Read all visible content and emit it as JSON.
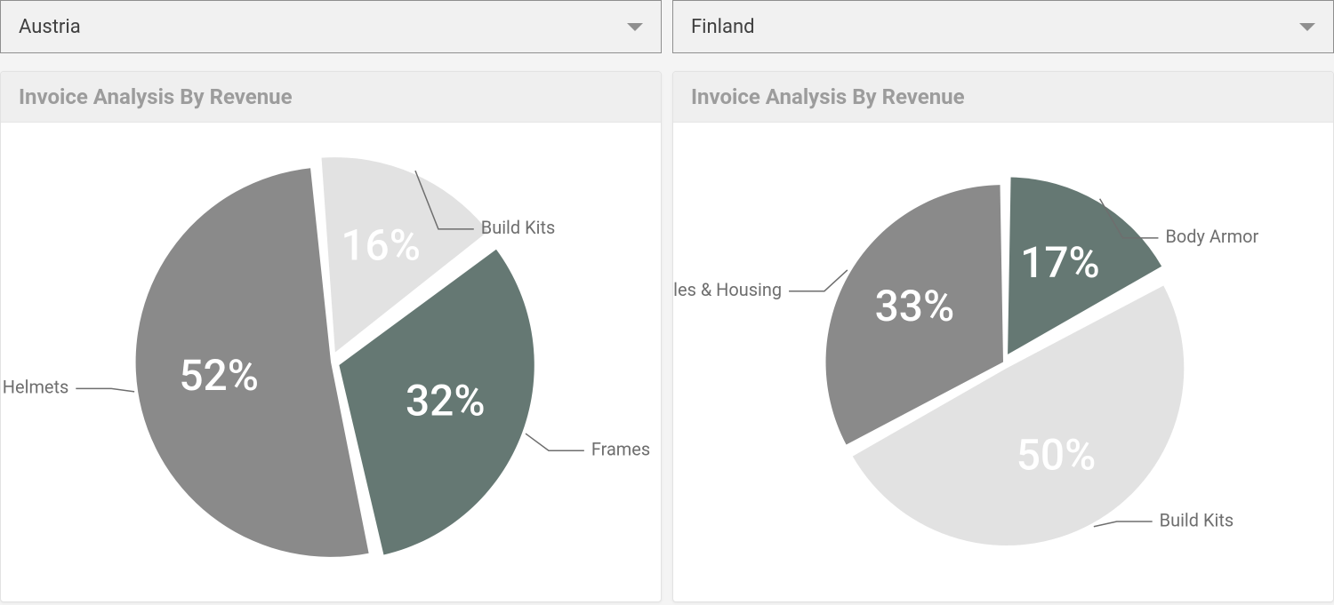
{
  "page_background": "#f4f4f4",
  "panels": [
    {
      "id": "left",
      "dropdown": {
        "selected": "Austria"
      },
      "card": {
        "title": "Invoice Analysis By Revenue",
        "chart": {
          "type": "pie",
          "background_color": "#ffffff",
          "radius": 220,
          "slice_gap_deg": 2,
          "start_angle_deg": -5,
          "pct_fontsize": 48,
          "pct_color": "#ffffff",
          "label_fontsize": 20,
          "label_color": "#6e6e6e",
          "callout_stroke": "#6e6e6e",
          "slices": [
            {
              "label": "Build Kits",
              "pct": 16,
              "color": "#e2e2e2",
              "explode": 12,
              "label_side": "right",
              "label_dy": -150
            },
            {
              "label": "Frames",
              "pct": 32,
              "color": "#657873",
              "explode": 10,
              "label_side": "right",
              "label_dy": 100
            },
            {
              "label": "Helmets",
              "pct": 52,
              "color": "#8a8a8a",
              "explode": 0,
              "label_side": "left",
              "label_dy": 30
            }
          ]
        }
      }
    },
    {
      "id": "right",
      "dropdown": {
        "selected": "Finland"
      },
      "card": {
        "title": "Invoice Analysis By Revenue",
        "chart": {
          "type": "pie",
          "background_color": "#ffffff",
          "radius": 200,
          "slice_gap_deg": 2,
          "start_angle_deg": 0,
          "pct_fontsize": 48,
          "pct_color": "#ffffff",
          "label_fontsize": 20,
          "label_color": "#6e6e6e",
          "callout_stroke": "#6e6e6e",
          "slices": [
            {
              "label": "Body Armor",
              "pct": 17,
              "color": "#657873",
              "explode": 10,
              "label_side": "right",
              "label_dy": -140
            },
            {
              "label": "Build Kits",
              "pct": 50,
              "color": "#e2e2e2",
              "explode": 8,
              "label_side": "right",
              "label_dy": 180
            },
            {
              "label": "Cables & Housing",
              "pct": 33,
              "color": "#8a8a8a",
              "explode": 0,
              "label_side": "left",
              "label_dy": -80
            }
          ]
        }
      }
    }
  ]
}
